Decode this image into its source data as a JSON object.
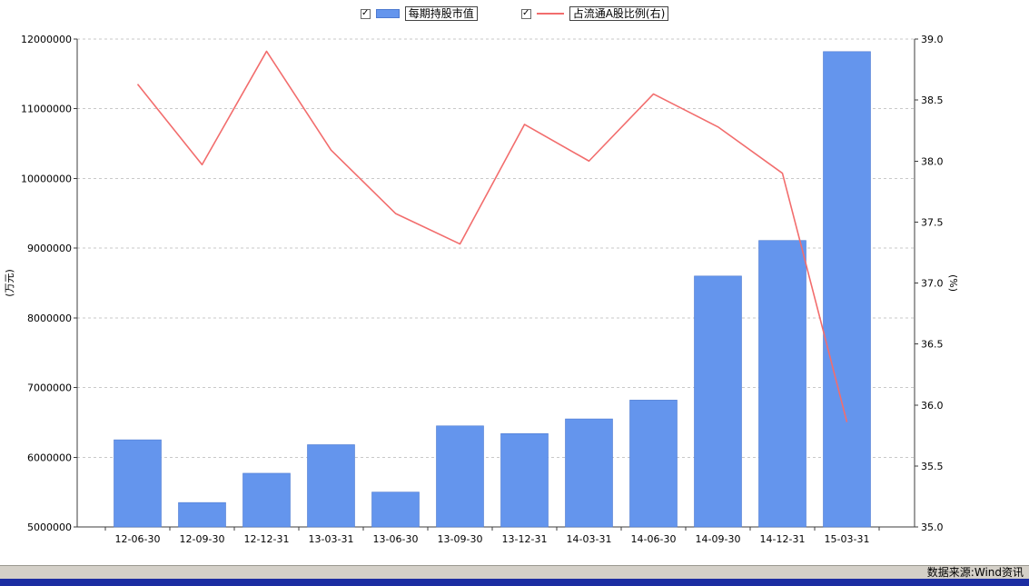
{
  "statusbar": {
    "source_text": "数据来源:Wind资讯"
  },
  "legend": {
    "items": [
      {
        "label": "每期持股市值",
        "checked": true,
        "swatch": "bar",
        "color": "#6495ED"
      },
      {
        "label": "占流通A股比例(右)",
        "checked": true,
        "swatch": "line",
        "color": "#F26D6D"
      }
    ]
  },
  "chart_data": {
    "type": "bar+line",
    "title": "",
    "categories": [
      "12-06-30",
      "12-09-30",
      "12-12-31",
      "13-03-31",
      "13-06-30",
      "13-09-30",
      "13-12-31",
      "14-03-31",
      "14-06-30",
      "14-09-30",
      "14-12-31",
      "15-03-31"
    ],
    "series": [
      {
        "name": "每期持股市值",
        "type": "bar",
        "axis": "left",
        "color": "#6495ED",
        "values": [
          6250000,
          5350000,
          5770000,
          6180000,
          5500000,
          6450000,
          6340000,
          6550000,
          6820000,
          8600000,
          9110000,
          11820000
        ]
      },
      {
        "name": "占流通A股比例(右)",
        "type": "line",
        "axis": "right",
        "color": "#F26D6D",
        "values": [
          38.63,
          37.97,
          38.9,
          38.09,
          37.57,
          37.32,
          38.3,
          38.0,
          38.55,
          38.28,
          37.9,
          35.86
        ]
      }
    ],
    "left_axis": {
      "label": "(万元)",
      "min": 5000000,
      "max": 12000000,
      "tick_step": 1000000,
      "ticks": [
        "5000000",
        "6000000",
        "7000000",
        "8000000",
        "9000000",
        "10000000",
        "11000000",
        "12000000"
      ]
    },
    "right_axis": {
      "label": "(%)",
      "min": 35.0,
      "max": 39.0,
      "tick_step": 0.5,
      "ticks": [
        "35.0",
        "35.5",
        "36.0",
        "36.5",
        "37.0",
        "37.5",
        "38.0",
        "38.5",
        "39.0"
      ]
    },
    "grid": "horizontal-dashed",
    "legend_position": "top"
  }
}
